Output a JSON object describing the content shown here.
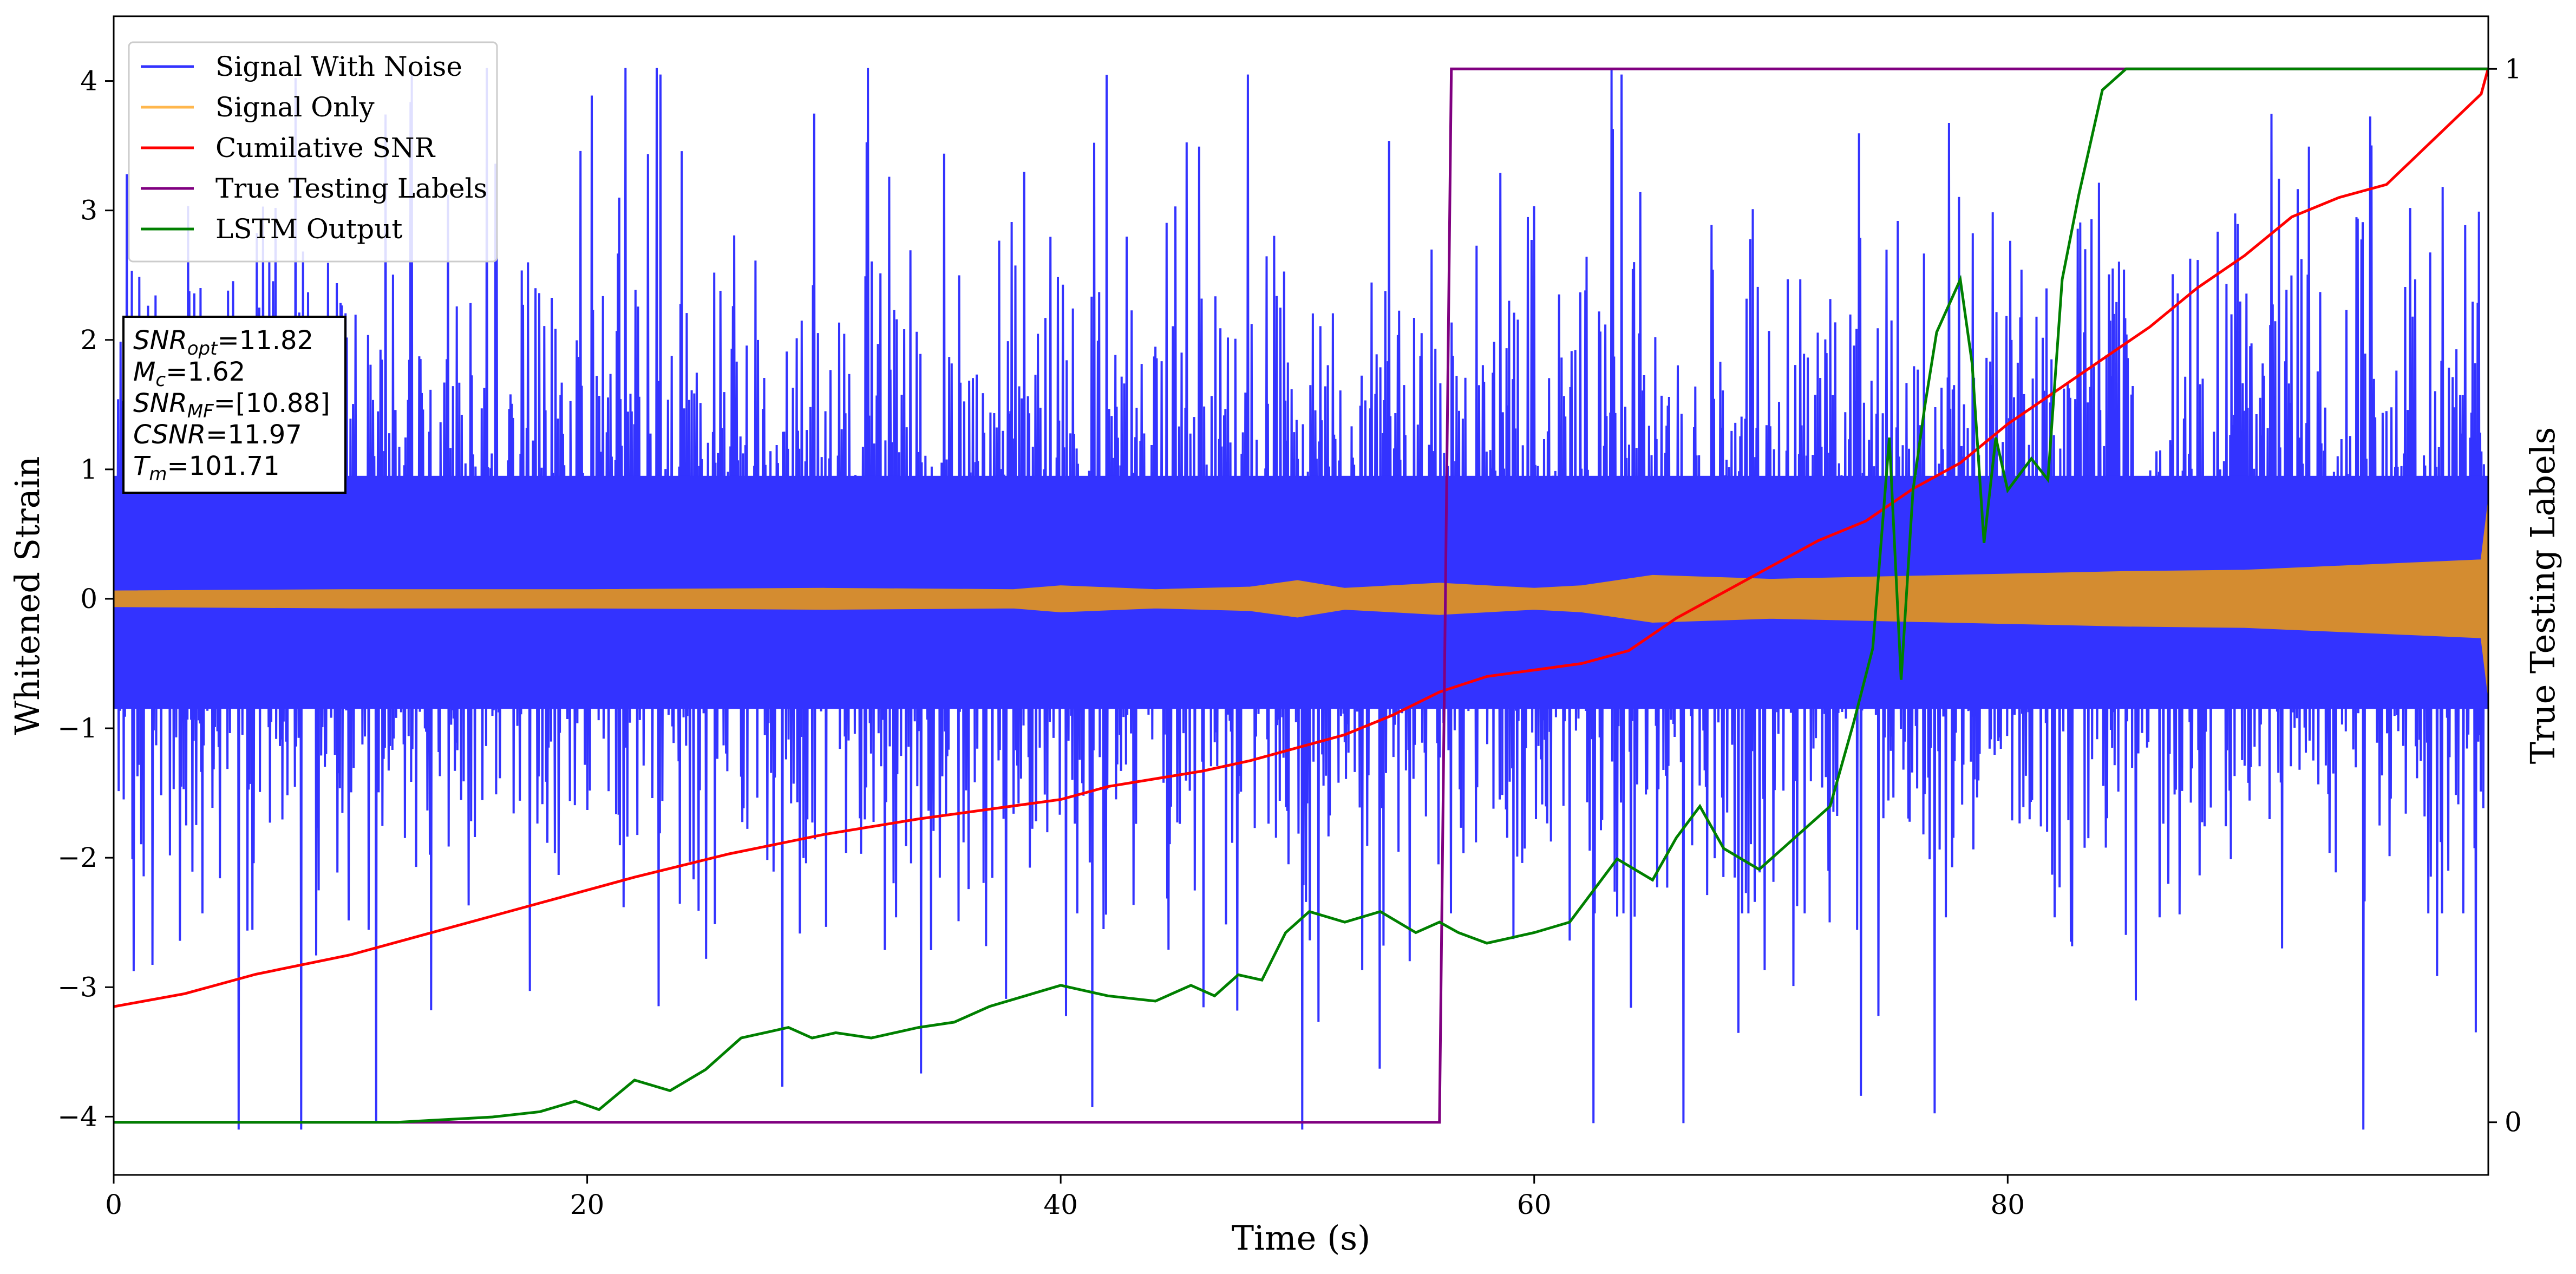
{
  "chart_data": {
    "type": "line",
    "xlabel": "Time (s)",
    "ylabel_left": "Whitened Strain",
    "ylabel_right": "True Testing Labels",
    "xlim": [
      0,
      100.3
    ],
    "ylim_left": [
      -4.45,
      4.5
    ],
    "ylim_right": [
      -0.05,
      1.05
    ],
    "x_ticks": [
      0,
      20,
      40,
      60,
      80
    ],
    "y_ticks_left": [
      -4,
      -3,
      -2,
      -1,
      0,
      1,
      2,
      3,
      4
    ],
    "y_ticks_right": [
      0,
      1
    ],
    "grid": false,
    "legend_position": "upper-left",
    "colors": {
      "signal_noise": "#3333ff",
      "signal_only": "#d48c30",
      "cumulative_snr": "#ff0000",
      "true_labels": "#800080",
      "lstm_output": "#008000"
    },
    "legend": [
      {
        "label": "Signal With Noise",
        "color": "#3333ff"
      },
      {
        "label": "Signal Only",
        "color": "#ffb74d"
      },
      {
        "label": "Cumilative SNR",
        "color": "#ff0000"
      },
      {
        "label": "True Testing Labels",
        "color": "#800080"
      },
      {
        "label": "LSTM Output",
        "color": "#008000"
      }
    ],
    "stats_box": [
      {
        "base": "SNR",
        "sub": "opt",
        "value": "=11.82"
      },
      {
        "base": "M",
        "sub": "c",
        "value": "=1.62"
      },
      {
        "base": "SNR",
        "sub": "MF",
        "value": "=[10.88]"
      },
      {
        "base": "CSNR",
        "sub": "",
        "value": "=11.97"
      },
      {
        "base": "T",
        "sub": "m",
        "value": "=101.71"
      }
    ],
    "series": [
      {
        "name": "Signal With Noise",
        "axis": "left",
        "kind": "noise_band",
        "band_core": [
          -0.85,
          0.95
        ],
        "spike_range": [
          -4.1,
          4.05
        ]
      },
      {
        "name": "Signal Only",
        "axis": "left",
        "kind": "envelope",
        "x": [
          0,
          10,
          20,
          30,
          38,
          40,
          44,
          48,
          50,
          52,
          56,
          60,
          62,
          65,
          70,
          75,
          80,
          85,
          90,
          95,
          100,
          100.3
        ],
        "amplitude": [
          0.06,
          0.07,
          0.07,
          0.08,
          0.07,
          0.1,
          0.07,
          0.09,
          0.14,
          0.08,
          0.12,
          0.08,
          0.1,
          0.18,
          0.15,
          0.17,
          0.19,
          0.21,
          0.22,
          0.26,
          0.3,
          0.75
        ]
      },
      {
        "name": "Cumilative SNR",
        "axis": "left",
        "x": [
          0,
          3,
          6,
          10,
          14,
          18,
          22,
          26,
          30,
          34,
          38,
          40,
          42,
          46,
          48,
          52,
          54,
          56,
          58,
          60,
          62,
          64,
          66,
          68,
          70,
          72,
          74,
          76,
          78,
          80,
          82,
          84,
          86,
          88,
          90,
          92,
          94,
          96,
          98,
          100,
          100.3
        ],
        "y": [
          -3.15,
          -3.05,
          -2.9,
          -2.75,
          -2.55,
          -2.35,
          -2.15,
          -1.97,
          -1.82,
          -1.7,
          -1.6,
          -1.55,
          -1.45,
          -1.33,
          -1.25,
          -1.05,
          -0.9,
          -0.72,
          -0.6,
          -0.55,
          -0.5,
          -0.4,
          -0.15,
          0.05,
          0.25,
          0.45,
          0.6,
          0.85,
          1.05,
          1.35,
          1.6,
          1.85,
          2.1,
          2.4,
          2.65,
          2.95,
          3.1,
          3.2,
          3.55,
          3.9,
          4.1
        ]
      },
      {
        "name": "True Testing Labels",
        "axis": "right",
        "x": [
          0,
          56.0,
          56.5,
          100.3
        ],
        "y": [
          0,
          0,
          1,
          1
        ]
      },
      {
        "name": "LSTM Output",
        "axis": "right",
        "x": [
          0,
          12,
          16,
          18,
          19.5,
          20.5,
          22,
          23.5,
          25,
          26.5,
          27.5,
          28.5,
          29.5,
          30.5,
          32,
          34,
          35.5,
          37,
          38.5,
          40,
          42,
          44,
          45.5,
          46.5,
          47.5,
          48.5,
          49.5,
          50.5,
          52,
          53.5,
          55,
          56,
          56.8,
          58,
          60,
          61.5,
          62.5,
          63.5,
          65,
          66,
          67,
          68,
          69.5,
          71,
          72.5,
          73.5,
          74.3,
          75,
          75.5,
          76,
          76.5,
          77,
          78,
          78.5,
          79,
          79.5,
          80,
          81,
          81.7,
          82.3,
          83,
          84,
          85,
          86,
          100.3
        ],
        "y": [
          0,
          0,
          0.005,
          0.01,
          0.02,
          0.012,
          0.04,
          0.03,
          0.05,
          0.08,
          0.085,
          0.09,
          0.08,
          0.085,
          0.08,
          0.09,
          0.095,
          0.11,
          0.12,
          0.13,
          0.12,
          0.115,
          0.13,
          0.12,
          0.14,
          0.135,
          0.18,
          0.2,
          0.19,
          0.2,
          0.18,
          0.19,
          0.18,
          0.17,
          0.18,
          0.19,
          0.22,
          0.25,
          0.23,
          0.27,
          0.3,
          0.26,
          0.24,
          0.27,
          0.3,
          0.38,
          0.45,
          0.65,
          0.42,
          0.6,
          0.68,
          0.75,
          0.8,
          0.72,
          0.55,
          0.65,
          0.6,
          0.63,
          0.61,
          0.8,
          0.88,
          0.98,
          1.0,
          1.0,
          1.0
        ]
      }
    ]
  }
}
